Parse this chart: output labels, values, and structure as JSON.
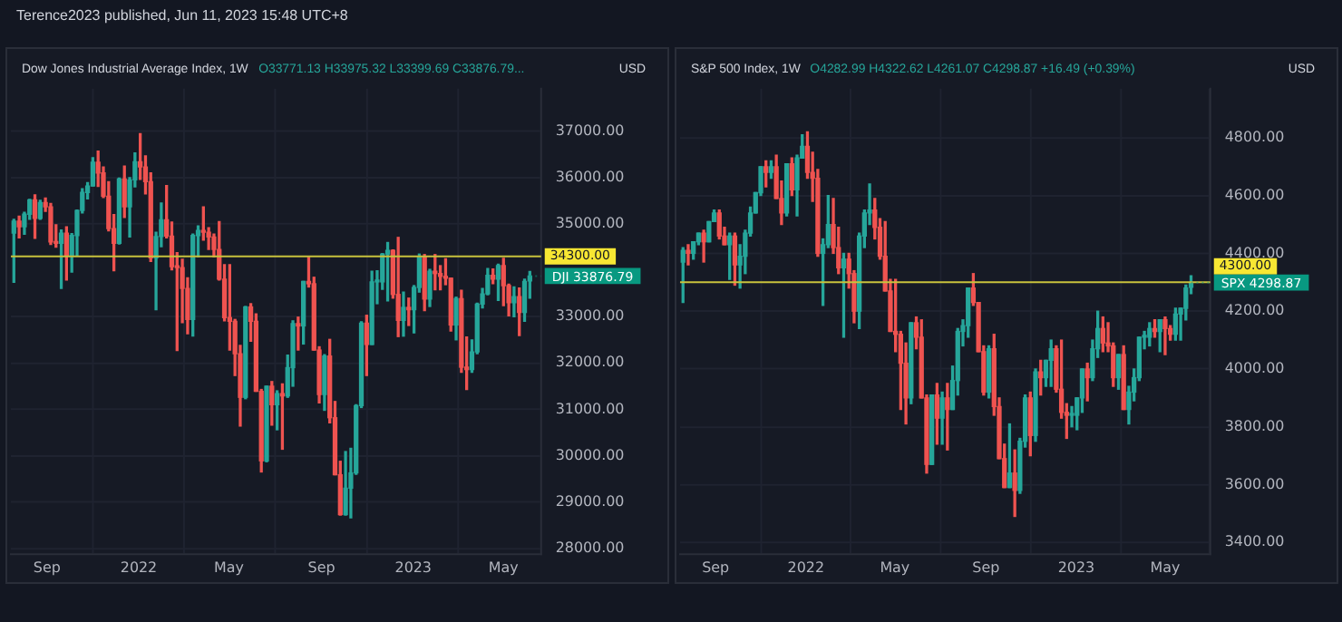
{
  "chart_data": [
    {
      "type": "candlestick",
      "title": "Dow Jones Industrial Average Index, 1W",
      "subtitle": "O33771.13 H33975.32 L33399.69 C33876.79...",
      "ylabel": "USD",
      "annotations": [
        "Terence2023 published, Jun 11, 2023 15:48 UTC+8",
        {
          "text": "DJI 33876.79",
          "x": "2023-06-05",
          "y": 33876.79
        }
      ],
      "grid": true,
      "xlim": [
        "2021-07-15",
        "2023-06-20"
      ],
      "xticks": [
        {
          "value": "2021-09-01",
          "label": "Sep"
        },
        {
          "value": "2022-01-01",
          "label": "2022"
        },
        {
          "value": "2022-05-01",
          "label": "May"
        },
        {
          "value": "2022-09-01",
          "label": "Sep"
        },
        {
          "value": "2023-01-01",
          "label": "2023"
        },
        {
          "value": "2023-05-01",
          "label": "May"
        }
      ],
      "ylim": [
        27880,
        37920
      ],
      "yticks": [
        {
          "value": 28000,
          "label": "28000.00"
        },
        {
          "value": 29000,
          "label": "29000.00"
        },
        {
          "value": 30000,
          "label": "30000.00"
        },
        {
          "value": 31000,
          "label": "31000.00"
        },
        {
          "value": 32000,
          "label": "32000.00"
        },
        {
          "value": 33000,
          "label": "33000.00"
        },
        {
          "value": 35000,
          "label": "35000.00"
        },
        {
          "value": 36000,
          "label": "36000.00"
        },
        {
          "value": 37000,
          "label": "37000.00"
        }
      ],
      "ref_lines": [
        {
          "axis": "y",
          "value": 34300,
          "label": "34300.00",
          "color": "#c8c23c"
        }
      ],
      "x": [
        "2021-07-19",
        "2021-07-26",
        "2021-08-02",
        "2021-08-09",
        "2021-08-16",
        "2021-08-23",
        "2021-08-30",
        "2021-09-06",
        "2021-09-13",
        "2021-09-20",
        "2021-09-27",
        "2021-10-04",
        "2021-10-11",
        "2021-10-18",
        "2021-10-25",
        "2021-11-01",
        "2021-11-08",
        "2021-11-15",
        "2021-11-22",
        "2021-11-29",
        "2021-12-06",
        "2021-12-13",
        "2021-12-20",
        "2021-12-27",
        "2022-01-03",
        "2022-01-10",
        "2022-01-17",
        "2022-01-24",
        "2022-01-31",
        "2022-02-07",
        "2022-02-14",
        "2022-02-21",
        "2022-02-28",
        "2022-03-07",
        "2022-03-14",
        "2022-03-21",
        "2022-03-28",
        "2022-04-04",
        "2022-04-11",
        "2022-04-18",
        "2022-04-25",
        "2022-05-02",
        "2022-05-09",
        "2022-05-16",
        "2022-05-23",
        "2022-05-30",
        "2022-06-06",
        "2022-06-13",
        "2022-06-20",
        "2022-06-27",
        "2022-07-04",
        "2022-07-11",
        "2022-07-18",
        "2022-07-25",
        "2022-08-01",
        "2022-08-08",
        "2022-08-15",
        "2022-08-22",
        "2022-08-29",
        "2022-09-05",
        "2022-09-12",
        "2022-09-19",
        "2022-09-26",
        "2022-10-03",
        "2022-10-10",
        "2022-10-17",
        "2022-10-24",
        "2022-10-31",
        "2022-11-07",
        "2022-11-14",
        "2022-11-21",
        "2022-11-28",
        "2022-12-05",
        "2022-12-12",
        "2022-12-19",
        "2022-12-26",
        "2023-01-02",
        "2023-01-09",
        "2023-01-16",
        "2023-01-23",
        "2023-01-30",
        "2023-02-06",
        "2023-02-13",
        "2023-02-20",
        "2023-02-27",
        "2023-03-06",
        "2023-03-13",
        "2023-03-20",
        "2023-03-27",
        "2023-04-03",
        "2023-04-10",
        "2023-04-17",
        "2023-04-24",
        "2023-05-01",
        "2023-05-08",
        "2023-05-15",
        "2023-05-22",
        "2023-05-29",
        "2023-06-05"
      ],
      "ohlc": [
        [
          34800,
          35100,
          33740,
          35060
        ],
        [
          35060,
          35170,
          34700,
          34940
        ],
        [
          34940,
          35250,
          34780,
          35210
        ],
        [
          35210,
          35530,
          35100,
          35520
        ],
        [
          35520,
          35630,
          34690,
          35120
        ],
        [
          35120,
          35510,
          35100,
          35460
        ],
        [
          35460,
          35560,
          35270,
          35370
        ],
        [
          35370,
          35440,
          34560,
          34610
        ],
        [
          34610,
          34980,
          34500,
          34580
        ],
        [
          34580,
          34870,
          33610,
          34800
        ],
        [
          34800,
          34940,
          33790,
          34330
        ],
        [
          34330,
          34790,
          33960,
          34750
        ],
        [
          34750,
          35300,
          34330,
          35290
        ],
        [
          35290,
          35760,
          35240,
          35680
        ],
        [
          35680,
          35890,
          35540,
          35820
        ],
        [
          35820,
          36430,
          35820,
          36330
        ],
        [
          36330,
          36570,
          35810,
          36100
        ],
        [
          36100,
          36230,
          35570,
          35600
        ],
        [
          35600,
          35910,
          34850,
          34900
        ],
        [
          34900,
          35200,
          33990,
          34580
        ],
        [
          34580,
          35990,
          34570,
          35970
        ],
        [
          35970,
          36250,
          35140,
          35370
        ],
        [
          35370,
          36000,
          34720,
          35950
        ],
        [
          35950,
          36530,
          35800,
          36340
        ],
        [
          36340,
          36950,
          35960,
          36230
        ],
        [
          36230,
          36470,
          35650,
          35910
        ],
        [
          35910,
          36100,
          34190,
          34270
        ],
        [
          34270,
          34820,
          33150,
          34730
        ],
        [
          34730,
          35450,
          34510,
          35090
        ],
        [
          35090,
          35830,
          34700,
          34740
        ],
        [
          34740,
          35040,
          34010,
          34080
        ],
        [
          34080,
          34380,
          32270,
          34060
        ],
        [
          34060,
          34240,
          32870,
          33610
        ],
        [
          33610,
          33840,
          32630,
          32940
        ],
        [
          32940,
          34780,
          32580,
          34750
        ],
        [
          34750,
          34960,
          34290,
          34860
        ],
        [
          34860,
          35370,
          34650,
          34820
        ],
        [
          34820,
          34920,
          34450,
          34720
        ],
        [
          34720,
          34780,
          34290,
          34450
        ],
        [
          34450,
          35050,
          33790,
          33810
        ],
        [
          33810,
          34120,
          32910,
          32980
        ],
        [
          32980,
          34120,
          32280,
          32900
        ],
        [
          32900,
          32940,
          31730,
          32200
        ],
        [
          32200,
          32380,
          30640,
          31260
        ],
        [
          31260,
          33220,
          31230,
          33210
        ],
        [
          33210,
          33280,
          32470,
          32900
        ],
        [
          32900,
          33060,
          31390,
          31390
        ],
        [
          31390,
          31430,
          29650,
          29890
        ],
        [
          29890,
          31500,
          29870,
          31500
        ],
        [
          31500,
          31600,
          30660,
          31100
        ],
        [
          31100,
          31400,
          30560,
          31340
        ],
        [
          31340,
          31550,
          30140,
          31290
        ],
        [
          31290,
          32170,
          31260,
          31900
        ],
        [
          31900,
          32910,
          31500,
          32850
        ],
        [
          32850,
          32990,
          32280,
          32800
        ],
        [
          32800,
          33760,
          32410,
          33760
        ],
        [
          33760,
          34280,
          33640,
          33710
        ],
        [
          33710,
          33850,
          32280,
          32280
        ],
        [
          32280,
          32350,
          31140,
          31320
        ],
        [
          31320,
          32180,
          30980,
          32150
        ],
        [
          32150,
          32510,
          30710,
          30820
        ],
        [
          30820,
          31170,
          29590,
          29590
        ],
        [
          29590,
          29880,
          28720,
          28730
        ],
        [
          28730,
          30090,
          28720,
          29300
        ],
        [
          29300,
          30160,
          28660,
          29630
        ],
        [
          29630,
          31100,
          29600,
          31080
        ],
        [
          31080,
          32890,
          31040,
          32860
        ],
        [
          32860,
          33030,
          31730,
          32400
        ],
        [
          32400,
          33980,
          32400,
          33750
        ],
        [
          33750,
          33990,
          33280,
          33750
        ],
        [
          33750,
          34360,
          33590,
          34350
        ],
        [
          34350,
          34600,
          33340,
          34430
        ],
        [
          34430,
          34440,
          33400,
          33480
        ],
        [
          33480,
          34710,
          32570,
          32920
        ],
        [
          32920,
          33530,
          32580,
          33200
        ],
        [
          33200,
          33400,
          32810,
          33150
        ],
        [
          33150,
          33670,
          32650,
          33630
        ],
        [
          33630,
          34350,
          33530,
          34300
        ],
        [
          34300,
          34340,
          33130,
          33380
        ],
        [
          33380,
          34020,
          33220,
          33980
        ],
        [
          33980,
          34340,
          33580,
          33930
        ],
        [
          33930,
          34100,
          33580,
          33870
        ],
        [
          33870,
          34250,
          33690,
          33830
        ],
        [
          33830,
          33830,
          32690,
          32820
        ],
        [
          32820,
          33420,
          32500,
          33390
        ],
        [
          33390,
          33570,
          31800,
          31910
        ],
        [
          31910,
          32560,
          31430,
          31860
        ],
        [
          31860,
          32500,
          31800,
          32240
        ],
        [
          32240,
          33290,
          32200,
          33270
        ],
        [
          33270,
          33610,
          33190,
          33490
        ],
        [
          33490,
          34040,
          33470,
          33890
        ],
        [
          33890,
          34030,
          33710,
          33810
        ],
        [
          33810,
          34130,
          33350,
          34100
        ],
        [
          34100,
          34260,
          33240,
          33670
        ],
        [
          33670,
          33700,
          33020,
          33300
        ],
        [
          33300,
          33640,
          33000,
          33430
        ],
        [
          33430,
          33620,
          32590,
          33090
        ],
        [
          33090,
          33810,
          32900,
          33760
        ],
        [
          33771.13,
          33975.32,
          33399.69,
          33876.79
        ]
      ]
    },
    {
      "type": "candlestick",
      "title": "S&P 500 Index, 1W",
      "subtitle": "O4282.99 H4322.62 L4261.07 C4298.87 +16.49 (+0.39%)",
      "ylabel": "USD",
      "annotations": [
        {
          "text": "SPX 4298.87",
          "x": "2023-06-05",
          "y": 4298.87
        }
      ],
      "grid": true,
      "xlim": [
        "2021-07-15",
        "2023-07-01"
      ],
      "xticks": [
        {
          "value": "2021-09-01",
          "label": "Sep"
        },
        {
          "value": "2022-01-01",
          "label": "2022"
        },
        {
          "value": "2022-05-01",
          "label": "May"
        },
        {
          "value": "2022-09-01",
          "label": "Sep"
        },
        {
          "value": "2023-01-01",
          "label": "2023"
        },
        {
          "value": "2023-05-01",
          "label": "May"
        }
      ],
      "ylim": [
        3360,
        4970
      ],
      "yticks": [
        {
          "value": 3400,
          "label": "3400.00"
        },
        {
          "value": 3600,
          "label": "3600.00"
        },
        {
          "value": 3800,
          "label": "3800.00"
        },
        {
          "value": 4000,
          "label": "4000.00"
        },
        {
          "value": 4200,
          "label": "4200.00"
        },
        {
          "value": 4400,
          "label": "4400.00"
        },
        {
          "value": 4600,
          "label": "4600.00"
        },
        {
          "value": 4800,
          "label": "4800.00"
        }
      ],
      "ref_lines": [
        {
          "axis": "y",
          "value": 4300,
          "label": "4300.00",
          "color": "#c8c23c"
        }
      ],
      "x": [
        "2021-07-19",
        "2021-07-26",
        "2021-08-02",
        "2021-08-09",
        "2021-08-16",
        "2021-08-23",
        "2021-08-30",
        "2021-09-06",
        "2021-09-13",
        "2021-09-20",
        "2021-09-27",
        "2021-10-04",
        "2021-10-11",
        "2021-10-18",
        "2021-10-25",
        "2021-11-01",
        "2021-11-08",
        "2021-11-15",
        "2021-11-22",
        "2021-11-29",
        "2021-12-06",
        "2021-12-13",
        "2021-12-20",
        "2021-12-27",
        "2022-01-03",
        "2022-01-10",
        "2022-01-17",
        "2022-01-24",
        "2022-01-31",
        "2022-02-07",
        "2022-02-14",
        "2022-02-21",
        "2022-02-28",
        "2022-03-07",
        "2022-03-14",
        "2022-03-21",
        "2022-03-28",
        "2022-04-04",
        "2022-04-11",
        "2022-04-18",
        "2022-04-25",
        "2022-05-02",
        "2022-05-09",
        "2022-05-16",
        "2022-05-23",
        "2022-05-30",
        "2022-06-06",
        "2022-06-13",
        "2022-06-20",
        "2022-06-27",
        "2022-07-04",
        "2022-07-11",
        "2022-07-18",
        "2022-07-25",
        "2022-08-01",
        "2022-08-08",
        "2022-08-15",
        "2022-08-22",
        "2022-08-29",
        "2022-09-05",
        "2022-09-12",
        "2022-09-19",
        "2022-09-26",
        "2022-10-03",
        "2022-10-10",
        "2022-10-17",
        "2022-10-24",
        "2022-10-31",
        "2022-11-07",
        "2022-11-14",
        "2022-11-21",
        "2022-11-28",
        "2022-12-05",
        "2022-12-12",
        "2022-12-19",
        "2022-12-26",
        "2023-01-02",
        "2023-01-09",
        "2023-01-16",
        "2023-01-23",
        "2023-01-30",
        "2023-02-06",
        "2023-02-13",
        "2023-02-20",
        "2023-02-27",
        "2023-03-06",
        "2023-03-13",
        "2023-03-20",
        "2023-03-27",
        "2023-04-03",
        "2023-04-10",
        "2023-04-17",
        "2023-04-24",
        "2023-05-01",
        "2023-05-08",
        "2023-05-15",
        "2023-05-22",
        "2023-05-29",
        "2023-06-05"
      ],
      "ohlc": [
        [
          4370,
          4420,
          4230,
          4410
        ],
        [
          4410,
          4430,
          4360,
          4400
        ],
        [
          4400,
          4440,
          4380,
          4440
        ],
        [
          4440,
          4470,
          4430,
          4470
        ],
        [
          4470,
          4480,
          4370,
          4440
        ],
        [
          4440,
          4510,
          4440,
          4510
        ],
        [
          4510,
          4550,
          4510,
          4540
        ],
        [
          4540,
          4550,
          4450,
          4460
        ],
        [
          4460,
          4490,
          4430,
          4430
        ],
        [
          4430,
          4470,
          4310,
          4460
        ],
        [
          4460,
          4470,
          4290,
          4360
        ],
        [
          4360,
          4430,
          4280,
          4390
        ],
        [
          4390,
          4480,
          4330,
          4470
        ],
        [
          4470,
          4560,
          4460,
          4540
        ],
        [
          4540,
          4610,
          4540,
          4610
        ],
        [
          4610,
          4700,
          4600,
          4700
        ],
        [
          4700,
          4720,
          4630,
          4680
        ],
        [
          4680,
          4720,
          4660,
          4700
        ],
        [
          4700,
          4740,
          4590,
          4590
        ],
        [
          4590,
          4650,
          4500,
          4540
        ],
        [
          4540,
          4710,
          4530,
          4710
        ],
        [
          4710,
          4730,
          4600,
          4620
        ],
        [
          4620,
          4740,
          4530,
          4730
        ],
        [
          4730,
          4810,
          4730,
          4770
        ],
        [
          4770,
          4820,
          4660,
          4680
        ],
        [
          4680,
          4750,
          4580,
          4660
        ],
        [
          4660,
          4690,
          4390,
          4400
        ],
        [
          4400,
          4450,
          4220,
          4430
        ],
        [
          4430,
          4600,
          4420,
          4500
        ],
        [
          4500,
          4590,
          4400,
          4420
        ],
        [
          4420,
          4490,
          4330,
          4350
        ],
        [
          4350,
          4400,
          4110,
          4380
        ],
        [
          4380,
          4400,
          4280,
          4330
        ],
        [
          4330,
          4340,
          4160,
          4200
        ],
        [
          4200,
          4470,
          4140,
          4460
        ],
        [
          4460,
          4550,
          4420,
          4540
        ],
        [
          4540,
          4640,
          4500,
          4550
        ],
        [
          4550,
          4590,
          4450,
          4490
        ],
        [
          4490,
          4520,
          4380,
          4390
        ],
        [
          4390,
          4510,
          4270,
          4270
        ],
        [
          4270,
          4310,
          4130,
          4130
        ],
        [
          4130,
          4310,
          4060,
          4120
        ],
        [
          4120,
          4130,
          3860,
          4020
        ],
        [
          4020,
          4090,
          3810,
          3900
        ],
        [
          3900,
          4160,
          3880,
          4160
        ],
        [
          4160,
          4180,
          4070,
          4110
        ],
        [
          4110,
          4170,
          3900,
          3900
        ],
        [
          3900,
          3910,
          3640,
          3670
        ],
        [
          3670,
          3910,
          3670,
          3910
        ],
        [
          3910,
          3950,
          3740,
          3830
        ],
        [
          3830,
          3920,
          3740,
          3900
        ],
        [
          3900,
          3950,
          3720,
          3860
        ],
        [
          3860,
          4010,
          3860,
          3960
        ],
        [
          3960,
          4140,
          3910,
          4130
        ],
        [
          4130,
          4170,
          4080,
          4150
        ],
        [
          4150,
          4280,
          4110,
          4280
        ],
        [
          4280,
          4330,
          4220,
          4230
        ],
        [
          4230,
          4230,
          4060,
          4060
        ],
        [
          4060,
          4080,
          3910,
          3920
        ],
        [
          3920,
          4080,
          3900,
          4070
        ],
        [
          4070,
          4120,
          3840,
          3870
        ],
        [
          3870,
          3900,
          3690,
          3690
        ],
        [
          3690,
          3740,
          3590,
          3590
        ],
        [
          3590,
          3810,
          3590,
          3640
        ],
        [
          3640,
          3720,
          3490,
          3580
        ],
        [
          3580,
          3760,
          3570,
          3750
        ],
        [
          3750,
          3910,
          3730,
          3900
        ],
        [
          3900,
          3920,
          3700,
          3770
        ],
        [
          3770,
          4000,
          3750,
          3990
        ],
        [
          3990,
          4030,
          3910,
          3970
        ],
        [
          3970,
          4030,
          3940,
          4030
        ],
        [
          4030,
          4100,
          3940,
          4070
        ],
        [
          4070,
          4080,
          3920,
          3930
        ],
        [
          3930,
          4100,
          3830,
          3850
        ],
        [
          3850,
          3880,
          3760,
          3840
        ],
        [
          3840,
          3870,
          3800,
          3840
        ],
        [
          3840,
          3900,
          3790,
          3900
        ],
        [
          3900,
          4000,
          3850,
          4000
        ],
        [
          4000,
          4020,
          3890,
          3970
        ],
        [
          3970,
          4100,
          3960,
          4070
        ],
        [
          4070,
          4200,
          4040,
          4140
        ],
        [
          4140,
          4180,
          4060,
          4090
        ],
        [
          4090,
          4160,
          4060,
          4080
        ],
        [
          4080,
          4090,
          3940,
          3970
        ],
        [
          3970,
          4050,
          3930,
          4050
        ],
        [
          4050,
          4080,
          3860,
          3860
        ],
        [
          3860,
          3940,
          3810,
          3920
        ],
        [
          3920,
          4000,
          3890,
          3970
        ],
        [
          3970,
          4110,
          3960,
          4110
        ],
        [
          4110,
          4130,
          4070,
          4110
        ],
        [
          4110,
          4160,
          4080,
          4140
        ],
        [
          4140,
          4170,
          4110,
          4130
        ],
        [
          4130,
          4170,
          4060,
          4170
        ],
        [
          4170,
          4180,
          4050,
          4140
        ],
        [
          4140,
          4150,
          4100,
          4120
        ],
        [
          4120,
          4210,
          4100,
          4190
        ],
        [
          4190,
          4210,
          4100,
          4210
        ],
        [
          4210,
          4290,
          4170,
          4280
        ],
        [
          4282.99,
          4322.62,
          4261.07,
          4298.87
        ]
      ]
    }
  ]
}
